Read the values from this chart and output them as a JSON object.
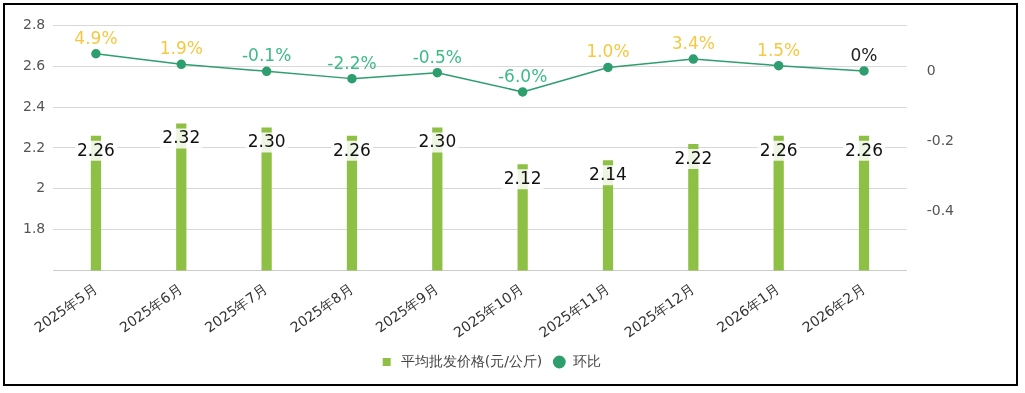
{
  "chart_data": {
    "type": "bar",
    "categories": [
      "2025年5月",
      "2025年6月",
      "2025年7月",
      "2025年8月",
      "2025年9月",
      "2025年10月",
      "2025年11月",
      "2025年12月",
      "2026年1月",
      "2026年2月"
    ],
    "series": [
      {
        "name": "平均批发价格(元/公斤)",
        "color": "#8dc044",
        "values": [
          2.26,
          2.32,
          2.3,
          2.26,
          2.3,
          2.12,
          2.14,
          2.22,
          2.26,
          2.26
        ],
        "value_labels": [
          "2.26",
          "2.32",
          "2.30",
          "2.26",
          "2.30",
          "2.12",
          "2.14",
          "2.22",
          "2.26",
          "2.26"
        ]
      },
      {
        "name": "环比",
        "type": "line",
        "axis": "y2",
        "color": "#2e9e6e",
        "marker": "circle",
        "values": [
          0.049,
          0.019,
          -0.001,
          -0.022,
          -0.005,
          -0.06,
          0.01,
          0.034,
          0.015,
          0
        ],
        "value_labels": [
          "4.9%",
          "1.9%",
          "-0.1%",
          "-2.2%",
          "-0.5%",
          "-6.0%",
          "1.0%",
          "3.4%",
          "1.5%",
          "0%"
        ]
      }
    ],
    "ylim": [
      1.6,
      2.8
    ],
    "yticks": [
      1.8,
      2,
      2.2,
      2.4,
      2.6,
      2.8
    ],
    "y2lim": [
      -0.57,
      0.13
    ],
    "y2ticks": [
      -0.4,
      -0.2,
      0
    ],
    "grid": "y",
    "legend": "bottom"
  }
}
